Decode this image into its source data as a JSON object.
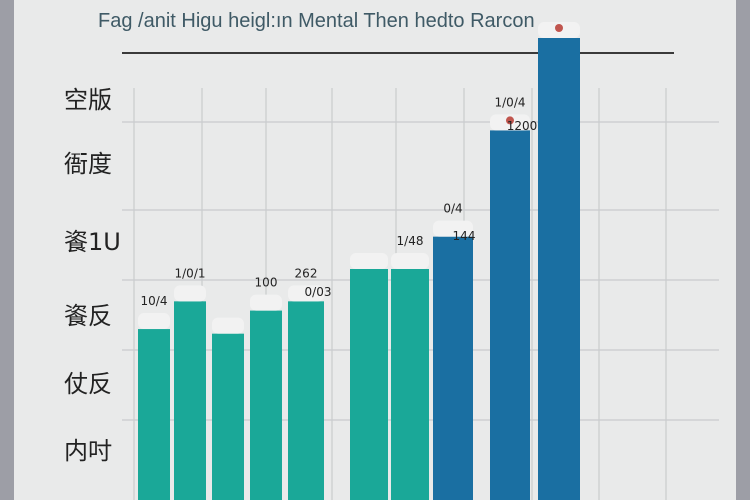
{
  "title": "",
  "subtitle": "Fag /anit Higu heigl:ın Mental Then hedto Rarcon",
  "chart_data": {
    "type": "bar",
    "ylim": [
      0,
      100
    ],
    "grid": true,
    "legend": "none",
    "colors": {
      "teal": "#1aa898",
      "blue": "#1a6fa2",
      "cap": "#f2f2f2",
      "dot": "#c0554e",
      "grid": "#c9cbcd",
      "axis": "#3a3a3a",
      "text": "#222222"
    },
    "y_tick_labels": [
      "空版",
      "衙度",
      "餈1U",
      "餈反",
      "仗反",
      "内吋"
    ],
    "bars": [
      {
        "value": 37,
        "label": "10/4",
        "color": "teal",
        "dot": false
      },
      {
        "value": 43,
        "label": "1/0/1",
        "color": "teal",
        "dot": false
      },
      {
        "value": 36,
        "label": "",
        "color": "teal",
        "dot": false
      },
      {
        "value": 41,
        "label": "100",
        "color": "teal",
        "dot": false
      },
      {
        "value": 43,
        "label": "262",
        "color": "teal",
        "dot": false
      },
      {
        "value": 50,
        "label": "",
        "color": "teal",
        "dot": false
      },
      {
        "value": 50,
        "label": "1/48",
        "color": "teal",
        "dot": false
      },
      {
        "value": 57,
        "label": "0/4",
        "color": "blue",
        "dot": false
      },
      {
        "value": 80,
        "label": "1/0/4",
        "color": "blue",
        "dot": true
      },
      {
        "value": 100,
        "label": "",
        "color": "blue",
        "dot": true
      }
    ],
    "extra_labels": [
      "0/03",
      "144",
      "1200"
    ]
  }
}
